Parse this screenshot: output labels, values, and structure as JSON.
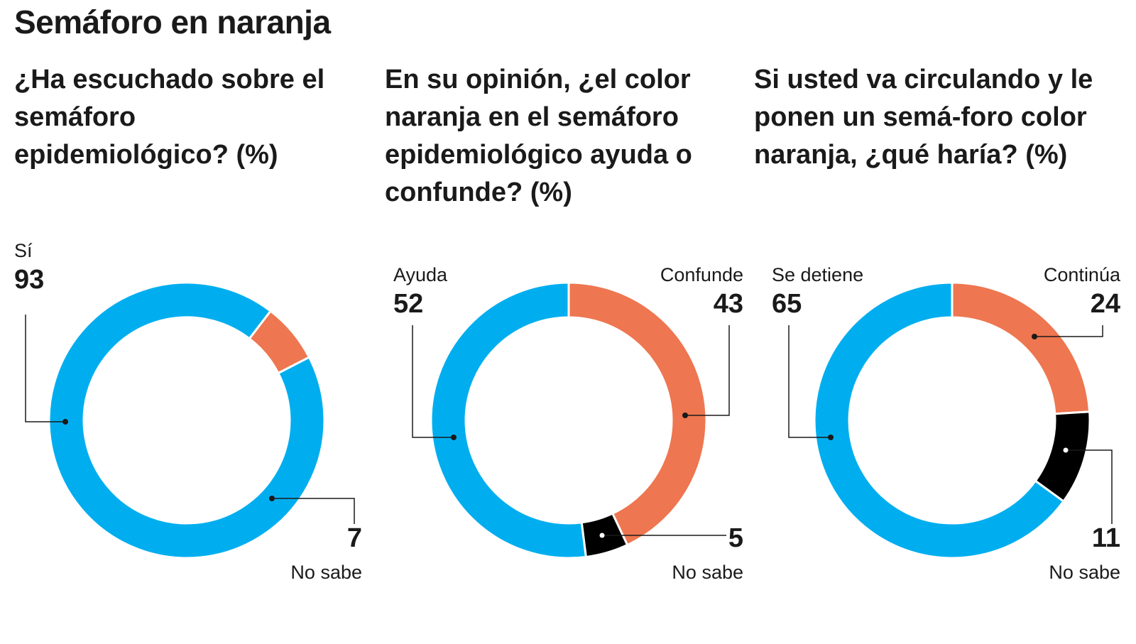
{
  "title": "Semáforo en naranja",
  "colors": {
    "blue": "#00AEEF",
    "orange": "#EE7650",
    "black": "#000000"
  },
  "chart_data": [
    {
      "type": "pie",
      "variant": "donut",
      "title": "¿Ha escuchado sobre el semáforo epidemiológico? (%)",
      "slices": [
        {
          "label": "Sí",
          "value": 93,
          "color": "#00AEEF"
        },
        {
          "label": "No sabe",
          "value": 7,
          "color": "#EE7650"
        }
      ]
    },
    {
      "type": "pie",
      "variant": "donut",
      "title": "En su opinión, ¿el color naranja en el semáforo epidemiológico ayuda o confunde? (%)",
      "slices": [
        {
          "label": "Confunde",
          "value": 43,
          "color": "#EE7650"
        },
        {
          "label": "No sabe",
          "value": 5,
          "color": "#000000"
        },
        {
          "label": "Ayuda",
          "value": 52,
          "color": "#00AEEF"
        }
      ]
    },
    {
      "type": "pie",
      "variant": "donut",
      "title": "Si usted va circulando y le ponen un semá-foro color naranja, ¿qué haría? (%)",
      "slices": [
        {
          "label": "Continúa",
          "value": 24,
          "color": "#EE7650"
        },
        {
          "label": "No sabe",
          "value": 11,
          "color": "#000000"
        },
        {
          "label": "Se detiene",
          "value": 65,
          "color": "#00AEEF"
        }
      ]
    }
  ]
}
